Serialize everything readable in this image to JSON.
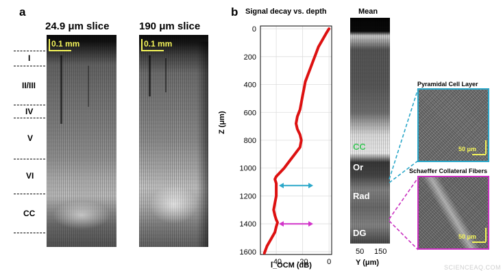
{
  "panel_a": {
    "letter": "a",
    "slice1_title": "24.9 μm slice",
    "slice2_title": "190 μm slice",
    "scalebar1": "0.1 mm",
    "scalebar2": "0.1 mm",
    "layers": [
      "I",
      "II/III",
      "IV",
      "V",
      "VI",
      "CC"
    ]
  },
  "panel_b": {
    "letter": "b",
    "mean_title": "Mean",
    "mean_labels": {
      "cc": "CC",
      "or": "Or",
      "rad": "Rad",
      "dg": "DG"
    },
    "mean_x_ticks": [
      "50",
      "150"
    ],
    "mean_x_label": "Y (μm)",
    "inset1_title": "Pyramidal Cell Layer",
    "inset2_title": "Schaeffer Collateral Fibers",
    "inset_scale": "50 μm",
    "colors": {
      "arrow_cyan": "#2aa7c9",
      "arrow_magenta": "#d133c9",
      "curve": "#dd1111",
      "inset1_border": "#2aa7c9",
      "inset2_border": "#c92fc0",
      "scalebar": "#f5f55a",
      "cc_label": "#3fc65a"
    }
  },
  "chart_data": {
    "type": "line",
    "title": "Signal decay vs. depth",
    "xlabel": "I_OCM (dB)",
    "ylabel": "Z (μm)",
    "xlim": [
      -52,
      2
    ],
    "ylim": [
      1620,
      -20
    ],
    "y_inverted": true,
    "grid": true,
    "x_ticks": [
      -40,
      -20,
      0
    ],
    "y_ticks": [
      0,
      200,
      400,
      600,
      800,
      1000,
      1200,
      1400,
      1600
    ],
    "series": [
      {
        "x": [
          0,
          -2,
          -5,
          -8,
          -10,
          -12,
          -14,
          -16,
          -18,
          -19,
          -20,
          -21,
          -22,
          -24,
          -25,
          -24,
          -22,
          -21,
          -22,
          -26,
          -30,
          -34,
          -38,
          -40,
          -41,
          -40,
          -40,
          -40,
          -41,
          -42,
          -41,
          -40,
          -39,
          -40,
          -41,
          -44,
          -47,
          -49
        ],
        "y": [
          0,
          30,
          80,
          130,
          180,
          230,
          280,
          330,
          380,
          430,
          480,
          530,
          580,
          630,
          680,
          720,
          760,
          800,
          850,
          900,
          950,
          1000,
          1040,
          1060,
          1080,
          1110,
          1150,
          1200,
          1250,
          1300,
          1340,
          1370,
          1390,
          1420,
          1460,
          1510,
          1560,
          1610
        ]
      }
    ],
    "annotations": [
      {
        "type": "double-arrow",
        "y": 1125,
        "x_from": -38,
        "x_to": -12,
        "color": "cyan"
      },
      {
        "type": "double-arrow",
        "y": 1400,
        "x_from": -38,
        "x_to": -12,
        "color": "magenta"
      }
    ]
  },
  "watermark": "SCIENCEAQ.COM"
}
